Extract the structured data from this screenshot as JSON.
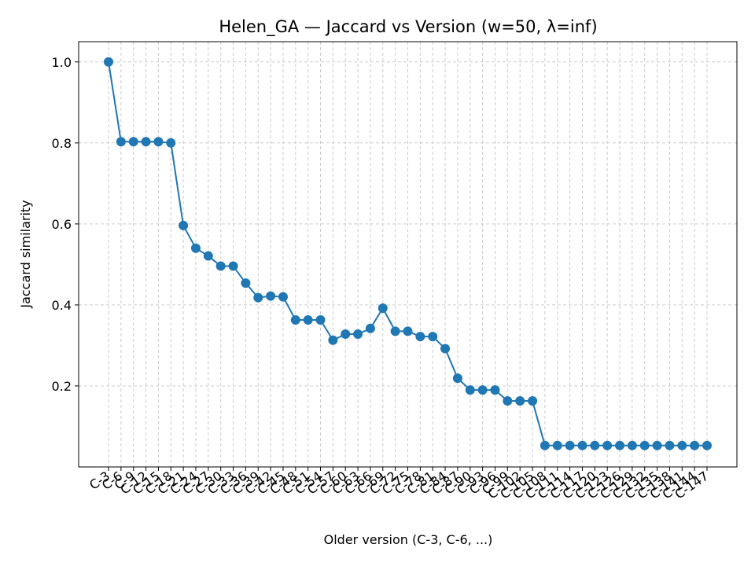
{
  "chart_data": {
    "type": "line",
    "title": "Helen_GA — Jaccard vs Version (w=50, λ=inf)",
    "xlabel": "Older version (C-3, C-6, ...)",
    "ylabel": "Jaccard similarity",
    "categories": [
      "C-3",
      "C-6",
      "C-9",
      "C-12",
      "C-15",
      "C-18",
      "C-21",
      "C-24",
      "C-27",
      "C-30",
      "C-33",
      "C-36",
      "C-39",
      "C-42",
      "C-45",
      "C-48",
      "C-51",
      "C-54",
      "C-57",
      "C-60",
      "C-63",
      "C-66",
      "C-69",
      "C-72",
      "C-75",
      "C-78",
      "C-81",
      "C-84",
      "C-87",
      "C-90",
      "C-93",
      "C-96",
      "C-99",
      "C-102",
      "C-105",
      "C-108",
      "C-111",
      "C-114",
      "C-117",
      "C-120",
      "C-123",
      "C-126",
      "C-129",
      "C-132",
      "C-135",
      "C-138",
      "C-141",
      "C-144",
      "C-147"
    ],
    "series": [
      {
        "values": [
          1.0,
          0.803,
          0.803,
          0.803,
          0.803,
          0.8,
          0.596,
          0.54,
          0.521,
          0.496,
          0.496,
          0.454,
          0.418,
          0.422,
          0.42,
          0.363,
          0.363,
          0.363,
          0.313,
          0.328,
          0.328,
          0.342,
          0.392,
          0.335,
          0.335,
          0.322,
          0.322,
          0.292,
          0.219,
          0.19,
          0.19,
          0.19,
          0.163,
          0.163,
          0.163,
          0.053,
          0.053,
          0.053,
          0.053,
          0.053,
          0.053,
          0.053,
          0.053,
          0.053,
          0.053,
          0.053,
          0.053,
          0.053,
          0.053
        ],
        "color": "#1f77b4"
      }
    ],
    "ylim": [
      0.0,
      1.05
    ],
    "yticks": [
      0.2,
      0.4,
      0.6,
      0.8,
      1.0
    ],
    "grid": true
  }
}
